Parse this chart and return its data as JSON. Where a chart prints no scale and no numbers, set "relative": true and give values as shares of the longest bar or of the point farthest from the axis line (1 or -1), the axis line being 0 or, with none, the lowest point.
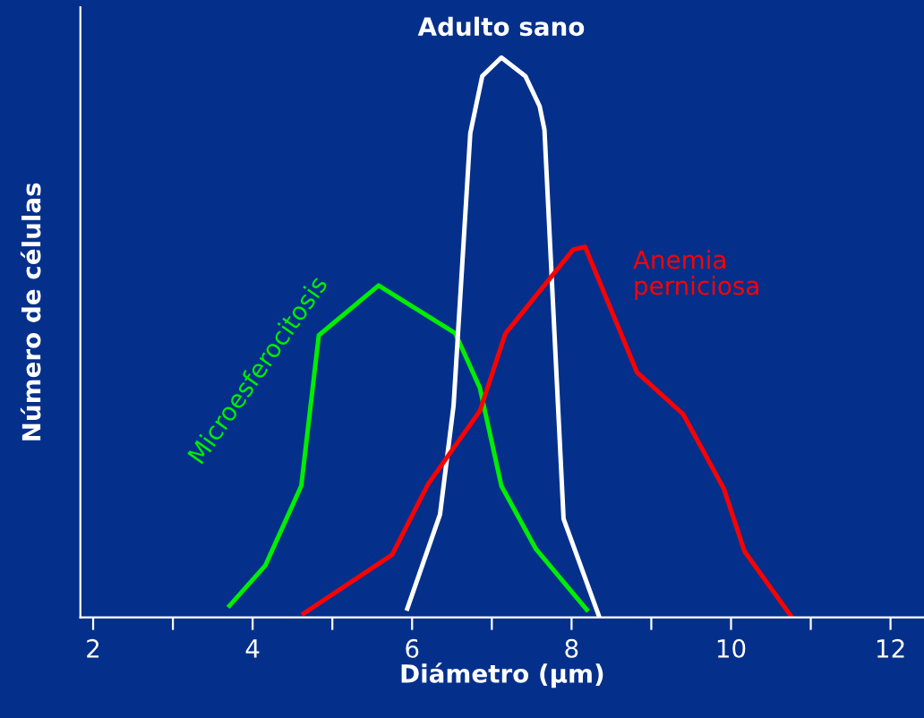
{
  "chart_data": {
    "type": "line",
    "relative": true,
    "xlabel": "Diámetro (μm)",
    "ylabel": "Número de células",
    "xlim": [
      1.84,
      12.42
    ],
    "xticks": [
      2,
      {
        "value": 3,
        "label": null
      },
      4,
      {
        "value": 5,
        "label": null
      },
      6,
      {
        "value": 7,
        "label": null
      },
      8,
      {
        "value": 9,
        "label": null
      },
      10,
      {
        "value": 11,
        "label": null
      },
      12
    ],
    "grid": false,
    "legend": false,
    "marker": "none",
    "line_style": "solid",
    "series": [
      {
        "name": "Microesferocitosis",
        "color": "#00ee00",
        "x": [
          3.71,
          4.16,
          4.61,
          4.83,
          5.58,
          6.54,
          6.85,
          7.12,
          7.55,
          8.19
        ],
        "values": [
          0.021,
          0.093,
          0.235,
          0.504,
          0.593,
          0.508,
          0.41,
          0.235,
          0.123,
          0.014
        ]
      },
      {
        "name": "Adulto sano",
        "color": "#ffffff",
        "x": [
          5.94,
          6.35,
          6.52,
          6.73,
          6.88,
          7.12,
          7.42,
          7.6,
          7.66,
          7.9,
          8.35
        ],
        "values": [
          0.016,
          0.184,
          0.378,
          0.865,
          0.967,
          1.0,
          0.967,
          0.913,
          0.871,
          0.176,
          0.0
        ]
      },
      {
        "name": "Anemia\nperniciosa",
        "color": "#ff0000",
        "x": [
          4.64,
          5.75,
          6.2,
          6.85,
          7.17,
          8.02,
          8.17,
          8.82,
          9.4,
          9.91,
          10.17,
          10.75
        ],
        "values": [
          0.007,
          0.112,
          0.238,
          0.369,
          0.507,
          0.657,
          0.662,
          0.438,
          0.363,
          0.23,
          0.118,
          0.003
        ]
      }
    ]
  }
}
